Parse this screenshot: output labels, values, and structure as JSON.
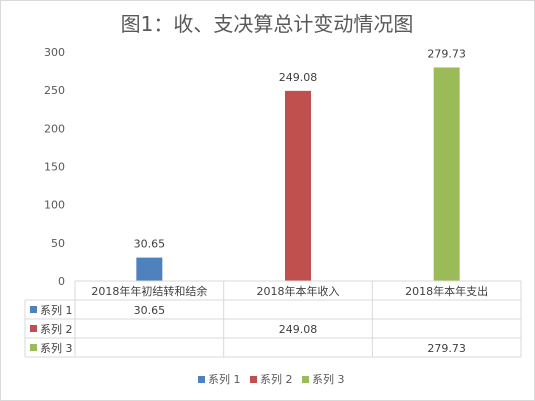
{
  "chart_data": {
    "type": "bar",
    "title": "图1：收、支决算总计变动情况图",
    "categories": [
      "2018年年初结转和结余",
      "2018年本年收入",
      "2018年本年支出"
    ],
    "ylim": [
      0,
      300
    ],
    "yticks": [
      0,
      50,
      100,
      150,
      200,
      250,
      300
    ],
    "grid": false,
    "legend_position": "bottom",
    "series": [
      {
        "name": "系列 1",
        "color": "#4f81bd",
        "values": [
          30.65,
          null,
          null
        ],
        "labels": [
          "30.65",
          "",
          ""
        ]
      },
      {
        "name": "系列 2",
        "color": "#c0504d",
        "values": [
          null,
          249.08,
          null
        ],
        "labels": [
          "",
          "249.08",
          ""
        ]
      },
      {
        "name": "系列 3",
        "color": "#9bbb59",
        "values": [
          null,
          null,
          279.73
        ],
        "labels": [
          "",
          "",
          "279.73"
        ]
      }
    ]
  }
}
